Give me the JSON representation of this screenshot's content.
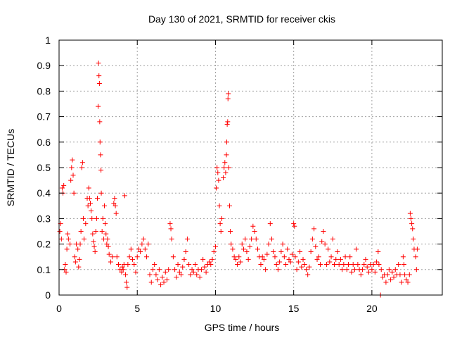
{
  "chart_data": {
    "type": "scatter",
    "title": "Day 130 of 2021, SRMTID for receiver ckis",
    "xlabel": "GPS time / hours",
    "ylabel": "SRMTID / TECUs",
    "xlim": [
      0,
      24.5
    ],
    "ylim": [
      0,
      1
    ],
    "x_ticks": [
      0,
      5,
      10,
      15,
      20
    ],
    "y_ticks": [
      0,
      0.1,
      0.2,
      0.3,
      0.4,
      0.5,
      0.6,
      0.7,
      0.8,
      0.9,
      1
    ],
    "x_tick_labels": [
      "0",
      "5",
      "10",
      "15",
      "20"
    ],
    "y_tick_labels": [
      "0",
      "0.1",
      "0.2",
      "0.3",
      "0.4",
      "0.5",
      "0.6",
      "0.7",
      "0.8",
      "0.9",
      "1"
    ],
    "grid": true,
    "marker": "+",
    "series_color": "#ff0000",
    "series": [
      {
        "name": "SRMTID",
        "points": [
          [
            0.05,
            0.25
          ],
          [
            0.1,
            0.28
          ],
          [
            0.15,
            0.22
          ],
          [
            0.2,
            0.42
          ],
          [
            0.25,
            0.4
          ],
          [
            0.3,
            0.43
          ],
          [
            0.35,
            0.1
          ],
          [
            0.4,
            0.12
          ],
          [
            0.45,
            0.09
          ],
          [
            0.5,
            0.18
          ],
          [
            0.55,
            0.24
          ],
          [
            0.6,
            0.22
          ],
          [
            0.7,
            0.2
          ],
          [
            0.75,
            0.45
          ],
          [
            0.8,
            0.5
          ],
          [
            0.85,
            0.53
          ],
          [
            0.9,
            0.47
          ],
          [
            0.95,
            0.4
          ],
          [
            1.0,
            0.15
          ],
          [
            1.05,
            0.13
          ],
          [
            1.1,
            0.2
          ],
          [
            1.2,
            0.18
          ],
          [
            1.25,
            0.11
          ],
          [
            1.3,
            0.14
          ],
          [
            1.35,
            0.2
          ],
          [
            1.4,
            0.25
          ],
          [
            1.45,
            0.5
          ],
          [
            1.5,
            0.52
          ],
          [
            1.55,
            0.3
          ],
          [
            1.6,
            0.22
          ],
          [
            1.7,
            0.28
          ],
          [
            1.8,
            0.38
          ],
          [
            1.85,
            0.35
          ],
          [
            1.9,
            0.42
          ],
          [
            1.95,
            0.38
          ],
          [
            2.0,
            0.36
          ],
          [
            2.05,
            0.33
          ],
          [
            2.1,
            0.3
          ],
          [
            2.15,
            0.24
          ],
          [
            2.2,
            0.21
          ],
          [
            2.25,
            0.19
          ],
          [
            2.3,
            0.17
          ],
          [
            2.35,
            0.25
          ],
          [
            2.4,
            0.3
          ],
          [
            2.45,
            0.38
          ],
          [
            2.5,
            0.74
          ],
          [
            2.52,
            0.91
          ],
          [
            2.55,
            0.86
          ],
          [
            2.58,
            0.83
          ],
          [
            2.6,
            0.68
          ],
          [
            2.62,
            0.6
          ],
          [
            2.65,
            0.55
          ],
          [
            2.68,
            0.49
          ],
          [
            2.7,
            0.4
          ],
          [
            2.75,
            0.25
          ],
          [
            2.8,
            0.3
          ],
          [
            2.85,
            0.22
          ],
          [
            2.9,
            0.35
          ],
          [
            2.95,
            0.28
          ],
          [
            3.0,
            0.24
          ],
          [
            3.05,
            0.2
          ],
          [
            3.1,
            0.22
          ],
          [
            3.15,
            0.19
          ],
          [
            3.2,
            0.16
          ],
          [
            3.3,
            0.13
          ],
          [
            3.4,
            0.15
          ],
          [
            3.5,
            0.36
          ],
          [
            3.55,
            0.38
          ],
          [
            3.6,
            0.35
          ],
          [
            3.65,
            0.32
          ],
          [
            3.7,
            0.15
          ],
          [
            3.8,
            0.12
          ],
          [
            3.9,
            0.1
          ],
          [
            4.0,
            0.09
          ],
          [
            4.05,
            0.11
          ],
          [
            4.1,
            0.1
          ],
          [
            4.15,
            0.12
          ],
          [
            4.2,
            0.39
          ],
          [
            4.25,
            0.08
          ],
          [
            4.3,
            0.05
          ],
          [
            4.35,
            0.03
          ],
          [
            4.4,
            0.12
          ],
          [
            4.5,
            0.15
          ],
          [
            4.6,
            0.18
          ],
          [
            4.7,
            0.14
          ],
          [
            4.8,
            0.12
          ],
          [
            4.9,
            0.09
          ],
          [
            5.0,
            0.15
          ],
          [
            5.1,
            0.18
          ],
          [
            5.2,
            0.17
          ],
          [
            5.3,
            0.2
          ],
          [
            5.4,
            0.22
          ],
          [
            5.5,
            0.18
          ],
          [
            5.6,
            0.15
          ],
          [
            5.7,
            0.2
          ],
          [
            5.8,
            0.08
          ],
          [
            5.9,
            0.05
          ],
          [
            6.0,
            0.1
          ],
          [
            6.1,
            0.12
          ],
          [
            6.2,
            0.08
          ],
          [
            6.3,
            0.06
          ],
          [
            6.4,
            0.1
          ],
          [
            6.5,
            0.04
          ],
          [
            6.6,
            0.07
          ],
          [
            6.7,
            0.05
          ],
          [
            6.8,
            0.09
          ],
          [
            6.9,
            0.06
          ],
          [
            7.0,
            0.1
          ],
          [
            7.1,
            0.28
          ],
          [
            7.15,
            0.26
          ],
          [
            7.2,
            0.22
          ],
          [
            7.3,
            0.15
          ],
          [
            7.4,
            0.1
          ],
          [
            7.5,
            0.07
          ],
          [
            7.6,
            0.12
          ],
          [
            7.7,
            0.09
          ],
          [
            7.8,
            0.08
          ],
          [
            7.9,
            0.11
          ],
          [
            8.0,
            0.14
          ],
          [
            8.1,
            0.17
          ],
          [
            8.2,
            0.22
          ],
          [
            8.3,
            0.12
          ],
          [
            8.4,
            0.08
          ],
          [
            8.5,
            0.1
          ],
          [
            8.6,
            0.09
          ],
          [
            8.7,
            0.12
          ],
          [
            8.8,
            0.08
          ],
          [
            8.9,
            0.1
          ],
          [
            9.0,
            0.07
          ],
          [
            9.1,
            0.1
          ],
          [
            9.2,
            0.14
          ],
          [
            9.3,
            0.11
          ],
          [
            9.4,
            0.09
          ],
          [
            9.5,
            0.12
          ],
          [
            9.6,
            0.13
          ],
          [
            9.7,
            0.12
          ],
          [
            9.8,
            0.14
          ],
          [
            9.9,
            0.17
          ],
          [
            10.0,
            0.19
          ],
          [
            10.05,
            0.42
          ],
          [
            10.1,
            0.5
          ],
          [
            10.15,
            0.48
          ],
          [
            10.2,
            0.45
          ],
          [
            10.25,
            0.35
          ],
          [
            10.3,
            0.28
          ],
          [
            10.35,
            0.25
          ],
          [
            10.4,
            0.3
          ],
          [
            10.5,
            0.46
          ],
          [
            10.55,
            0.5
          ],
          [
            10.6,
            0.52
          ],
          [
            10.65,
            0.48
          ],
          [
            10.7,
            0.55
          ],
          [
            10.72,
            0.6
          ],
          [
            10.75,
            0.67
          ],
          [
            10.78,
            0.68
          ],
          [
            10.8,
            0.77
          ],
          [
            10.82,
            0.79
          ],
          [
            10.85,
            0.5
          ],
          [
            10.9,
            0.35
          ],
          [
            10.95,
            0.25
          ],
          [
            11.0,
            0.2
          ],
          [
            11.1,
            0.18
          ],
          [
            11.2,
            0.15
          ],
          [
            11.3,
            0.14
          ],
          [
            11.4,
            0.12
          ],
          [
            11.5,
            0.15
          ],
          [
            11.6,
            0.13
          ],
          [
            11.7,
            0.2
          ],
          [
            11.8,
            0.18
          ],
          [
            11.9,
            0.22
          ],
          [
            12.0,
            0.17
          ],
          [
            12.1,
            0.14
          ],
          [
            12.2,
            0.19
          ],
          [
            12.3,
            0.22
          ],
          [
            12.4,
            0.27
          ],
          [
            12.5,
            0.25
          ],
          [
            12.6,
            0.22
          ],
          [
            12.7,
            0.18
          ],
          [
            12.8,
            0.15
          ],
          [
            12.9,
            0.12
          ],
          [
            13.0,
            0.15
          ],
          [
            13.1,
            0.14
          ],
          [
            13.2,
            0.1
          ],
          [
            13.3,
            0.16
          ],
          [
            13.4,
            0.2
          ],
          [
            13.5,
            0.28
          ],
          [
            13.6,
            0.22
          ],
          [
            13.7,
            0.17
          ],
          [
            13.8,
            0.15
          ],
          [
            13.9,
            0.12
          ],
          [
            14.0,
            0.1
          ],
          [
            14.1,
            0.13
          ],
          [
            14.2,
            0.17
          ],
          [
            14.3,
            0.2
          ],
          [
            14.4,
            0.15
          ],
          [
            14.5,
            0.12
          ],
          [
            14.6,
            0.18
          ],
          [
            14.7,
            0.14
          ],
          [
            14.8,
            0.13
          ],
          [
            14.9,
            0.16
          ],
          [
            15.0,
            0.28
          ],
          [
            15.05,
            0.27
          ],
          [
            15.1,
            0.15
          ],
          [
            15.2,
            0.1
          ],
          [
            15.3,
            0.13
          ],
          [
            15.4,
            0.17
          ],
          [
            15.5,
            0.11
          ],
          [
            15.6,
            0.14
          ],
          [
            15.7,
            0.12
          ],
          [
            15.8,
            0.1
          ],
          [
            15.9,
            0.08
          ],
          [
            16.0,
            0.11
          ],
          [
            16.1,
            0.17
          ],
          [
            16.2,
            0.22
          ],
          [
            16.3,
            0.26
          ],
          [
            16.4,
            0.19
          ],
          [
            16.5,
            0.14
          ],
          [
            16.6,
            0.15
          ],
          [
            16.7,
            0.12
          ],
          [
            16.8,
            0.21
          ],
          [
            16.9,
            0.25
          ],
          [
            17.0,
            0.2
          ],
          [
            17.1,
            0.12
          ],
          [
            17.2,
            0.18
          ],
          [
            17.3,
            0.13
          ],
          [
            17.4,
            0.15
          ],
          [
            17.5,
            0.22
          ],
          [
            17.6,
            0.12
          ],
          [
            17.7,
            0.14
          ],
          [
            17.8,
            0.17
          ],
          [
            17.9,
            0.12
          ],
          [
            18.0,
            0.14
          ],
          [
            18.1,
            0.1
          ],
          [
            18.2,
            0.12
          ],
          [
            18.3,
            0.15
          ],
          [
            18.4,
            0.1
          ],
          [
            18.5,
            0.12
          ],
          [
            18.6,
            0.15
          ],
          [
            18.7,
            0.09
          ],
          [
            18.8,
            0.12
          ],
          [
            18.9,
            0.1
          ],
          [
            19.0,
            0.18
          ],
          [
            19.1,
            0.12
          ],
          [
            19.2,
            0.1
          ],
          [
            19.3,
            0.08
          ],
          [
            19.4,
            0.1
          ],
          [
            19.5,
            0.12
          ],
          [
            19.6,
            0.14
          ],
          [
            19.7,
            0.11
          ],
          [
            19.8,
            0.09
          ],
          [
            19.9,
            0.12
          ],
          [
            20.0,
            0.1
          ],
          [
            20.1,
            0.12
          ],
          [
            20.2,
            0.09
          ],
          [
            20.3,
            0.13
          ],
          [
            20.4,
            0.17
          ],
          [
            20.45,
            0.12
          ],
          [
            20.55,
            0.0
          ],
          [
            20.6,
            0.1
          ],
          [
            20.7,
            0.07
          ],
          [
            20.8,
            0.08
          ],
          [
            20.9,
            0.05
          ],
          [
            21.0,
            0.08
          ],
          [
            21.1,
            0.1
          ],
          [
            21.2,
            0.06
          ],
          [
            21.3,
            0.09
          ],
          [
            21.4,
            0.07
          ],
          [
            21.5,
            0.1
          ],
          [
            21.6,
            0.08
          ],
          [
            21.7,
            0.12
          ],
          [
            21.8,
            0.08
          ],
          [
            21.9,
            0.05
          ],
          [
            22.0,
            0.15
          ],
          [
            22.05,
            0.12
          ],
          [
            22.1,
            0.08
          ],
          [
            22.2,
            0.06
          ],
          [
            22.3,
            0.05
          ],
          [
            22.4,
            0.08
          ],
          [
            22.45,
            0.32
          ],
          [
            22.5,
            0.3
          ],
          [
            22.55,
            0.28
          ],
          [
            22.6,
            0.26
          ],
          [
            22.65,
            0.22
          ],
          [
            22.7,
            0.18
          ],
          [
            22.8,
            0.15
          ],
          [
            22.85,
            0.1
          ],
          [
            22.9,
            0.18
          ]
        ]
      }
    ]
  }
}
